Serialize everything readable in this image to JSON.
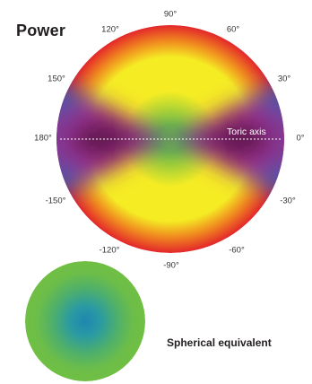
{
  "title": "Power",
  "toric_axis_label": "Toric axis",
  "spherical_label": "Spherical equivalent",
  "angles": {
    "a90": "90°",
    "a60": "60°",
    "a30": "30°",
    "a0": "0°",
    "a_30": "-30°",
    "a_60": "-60°",
    "a_90": "-90°",
    "a_120": "-120°",
    "a_150": "-150°",
    "a180": "180°",
    "a150": "150°",
    "a120": "120°"
  },
  "colors": {
    "red": "#e3262b",
    "orange": "#f08a1f",
    "yellow": "#f5ec24",
    "green": "#70bf44",
    "blue": "#3a5aaa",
    "magenta": "#a42a8b",
    "dark": "#2a0f1e"
  }
}
